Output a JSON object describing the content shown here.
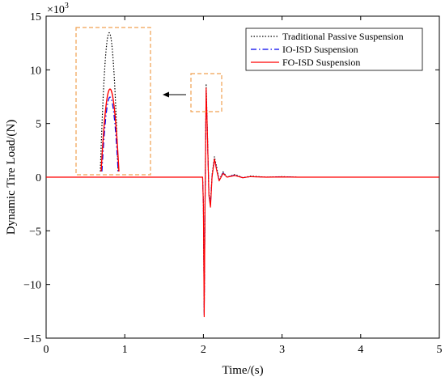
{
  "chart_data": {
    "type": "line",
    "xlabel": "Time/(s)",
    "ylabel": "Dynamic Tire Load/(N)",
    "y_multiplier_label": "×10",
    "y_multiplier_exp": "3",
    "xlim": [
      0,
      5
    ],
    "ylim": [
      -15,
      15
    ],
    "x_ticks": [
      "0",
      "1",
      "2",
      "3",
      "4",
      "5"
    ],
    "y_ticks": [
      "15",
      "10",
      "5",
      "0",
      "−5",
      "−10",
      "−15"
    ],
    "y_tick_values": [
      15,
      10,
      5,
      0,
      -5,
      -10,
      -15
    ],
    "x_tick_values": [
      0,
      1,
      2,
      3,
      4,
      5
    ],
    "grid": false,
    "legend_position": "top-right",
    "series": [
      {
        "name": "Traditional Passive Suspension",
        "color": "#000000",
        "style": "dotted",
        "x": [
          0,
          1.99,
          2.0,
          2.01,
          2.02,
          2.035,
          2.05,
          2.07,
          2.09,
          2.11,
          2.14,
          2.17,
          2.2,
          2.25,
          2.3,
          2.4,
          2.5,
          2.6,
          2.8,
          3.0,
          3.2,
          5
        ],
        "y": [
          0,
          0,
          -2.5,
          -12.6,
          -3.0,
          8.7,
          4.5,
          -1.5,
          -2.4,
          0.2,
          1.9,
          0.9,
          -0.3,
          0.5,
          0.0,
          0.25,
          -0.05,
          0.1,
          0.0,
          0.05,
          0.0,
          0
        ]
      },
      {
        "name": "IO-ISD Suspension",
        "color": "#0000ee",
        "style": "dashdot",
        "x": [
          0,
          1.99,
          2.0,
          2.01,
          2.02,
          2.035,
          2.05,
          2.07,
          2.09,
          2.11,
          2.14,
          2.17,
          2.2,
          2.25,
          2.3,
          2.4,
          2.5,
          2.6,
          2.8,
          3.0,
          3.2,
          5
        ],
        "y": [
          0,
          0,
          -2.6,
          -12.8,
          -3.2,
          8.0,
          4.2,
          -1.6,
          -2.6,
          0.1,
          1.7,
          0.7,
          -0.3,
          0.4,
          0.0,
          0.2,
          -0.05,
          0.05,
          0.0,
          0.03,
          0.0,
          0
        ]
      },
      {
        "name": "FO-ISD Suspension",
        "color": "#ff0000",
        "style": "solid",
        "x": [
          0,
          1.99,
          2.0,
          2.01,
          2.02,
          2.035,
          2.05,
          2.07,
          2.09,
          2.11,
          2.14,
          2.17,
          2.2,
          2.25,
          2.3,
          2.4,
          2.5,
          2.6,
          2.8,
          3.0,
          3.2,
          5
        ],
        "y": [
          0,
          0,
          -2.7,
          -13.0,
          -3.3,
          8.3,
          4.3,
          -1.7,
          -2.8,
          0.0,
          1.7,
          0.6,
          -0.35,
          0.35,
          0.0,
          0.15,
          -0.05,
          0.05,
          0.0,
          0.02,
          0.0,
          0
        ]
      }
    ],
    "inset": {
      "peaks": [
        13.8,
        7.4,
        8.2
      ],
      "zoom_box_color": "#f0a050"
    }
  }
}
